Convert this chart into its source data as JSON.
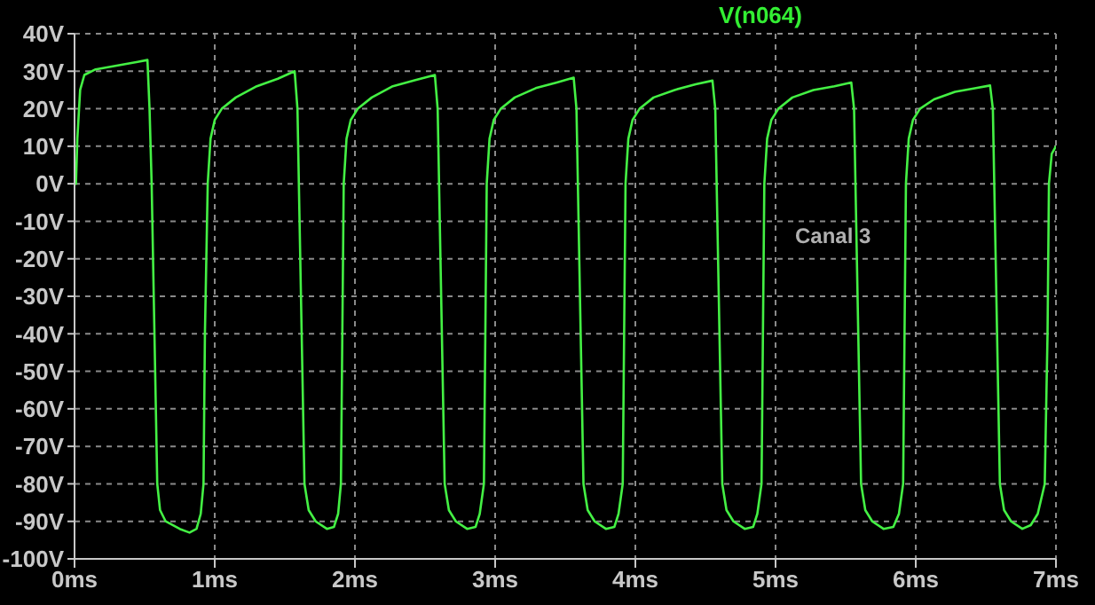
{
  "chart_data": {
    "type": "line",
    "title": "V(n064)",
    "annotations": [
      "Canal 3"
    ],
    "x": [
      0,
      0.01,
      0.02,
      0.04,
      0.07,
      0.15,
      0.3,
      0.45,
      0.52,
      0.535,
      0.55,
      0.57,
      0.59,
      0.61,
      0.65,
      0.75,
      0.82,
      0.87,
      0.9,
      0.92,
      0.93,
      0.95,
      0.97,
      1.0,
      1.05,
      1.15,
      1.3,
      1.45,
      1.57,
      1.59,
      1.6,
      1.62,
      1.64,
      1.67,
      1.72,
      1.8,
      1.85,
      1.88,
      1.9,
      1.91,
      1.92,
      1.94,
      1.97,
      2.02,
      2.12,
      2.27,
      2.42,
      2.57,
      2.59,
      2.6,
      2.62,
      2.64,
      2.67,
      2.72,
      2.8,
      2.86,
      2.89,
      2.92,
      2.93,
      2.94,
      2.96,
      2.99,
      3.04,
      3.14,
      3.29,
      3.44,
      3.56,
      3.58,
      3.59,
      3.61,
      3.63,
      3.66,
      3.71,
      3.79,
      3.85,
      3.88,
      3.91,
      3.92,
      3.93,
      3.95,
      3.98,
      4.03,
      4.13,
      4.28,
      4.43,
      4.55,
      4.57,
      4.58,
      4.6,
      4.62,
      4.65,
      4.7,
      4.78,
      4.84,
      4.87,
      4.9,
      4.91,
      4.92,
      4.94,
      4.97,
      5.02,
      5.12,
      5.27,
      5.42,
      5.54,
      5.56,
      5.57,
      5.59,
      5.61,
      5.64,
      5.69,
      5.77,
      5.84,
      5.88,
      5.91,
      5.92,
      5.93,
      5.95,
      5.98,
      6.03,
      6.13,
      6.28,
      6.43,
      6.53,
      6.55,
      6.56,
      6.58,
      6.6,
      6.63,
      6.68,
      6.76,
      6.82,
      6.87,
      6.92,
      6.94,
      6.95,
      6.97,
      7.0
    ],
    "series": [
      {
        "color": "#44f044",
        "values": [
          0,
          0,
          12,
          25,
          29,
          30.5,
          31.5,
          32.5,
          33,
          20,
          0,
          -40,
          -80,
          -87,
          -90,
          -92,
          -93,
          -92,
          -88,
          -80,
          -40,
          0,
          12,
          17,
          20,
          23,
          26,
          28,
          30,
          20,
          0,
          -40,
          -80,
          -87,
          -90,
          -92,
          -91.5,
          -88,
          -80,
          -40,
          0,
          12,
          17,
          20,
          23,
          26,
          27.5,
          29,
          20,
          0,
          -40,
          -80,
          -87,
          -90,
          -92,
          -91.5,
          -88,
          -80,
          -40,
          0,
          12,
          17,
          20,
          23,
          25.5,
          27,
          28.3,
          20,
          0,
          -40,
          -80,
          -87,
          -90,
          -92,
          -91.5,
          -88,
          -80,
          -40,
          0,
          12,
          17,
          20,
          23,
          25,
          26.5,
          27.5,
          20,
          0,
          -40,
          -80,
          -87,
          -90,
          -92,
          -91.5,
          -88,
          -80,
          -40,
          0,
          12,
          17,
          20,
          23,
          25,
          26,
          27,
          20,
          0,
          -40,
          -80,
          -87,
          -90,
          -92,
          -91.5,
          -88,
          -80,
          -40,
          0,
          12,
          17,
          20,
          22.5,
          24.5,
          25.5,
          26.2,
          20,
          0,
          -40,
          -80,
          -87,
          -90,
          -92,
          -91,
          -88,
          -80,
          -40,
          0,
          8,
          10
        ]
      }
    ],
    "xlim": [
      0,
      7
    ],
    "xticks": [
      {
        "value": 0,
        "label": "0ms"
      },
      {
        "value": 1,
        "label": "1ms"
      },
      {
        "value": 2,
        "label": "2ms"
      },
      {
        "value": 3,
        "label": "3ms"
      },
      {
        "value": 4,
        "label": "4ms"
      },
      {
        "value": 5,
        "label": "5ms"
      },
      {
        "value": 6,
        "label": "6ms"
      },
      {
        "value": 7,
        "label": "7ms"
      }
    ],
    "ylim": [
      -100,
      40
    ],
    "yticks": [
      {
        "value": 40,
        "label": "40V"
      },
      {
        "value": 30,
        "label": "30V"
      },
      {
        "value": 20,
        "label": "20V"
      },
      {
        "value": 10,
        "label": "10V"
      },
      {
        "value": 0,
        "label": "0V"
      },
      {
        "value": -10,
        "label": "-10V"
      },
      {
        "value": -20,
        "label": "-20V"
      },
      {
        "value": -30,
        "label": "-30V"
      },
      {
        "value": -40,
        "label": "-40V"
      },
      {
        "value": -50,
        "label": "-50V"
      },
      {
        "value": -60,
        "label": "-60V"
      },
      {
        "value": -70,
        "label": "-70V"
      },
      {
        "value": -80,
        "label": "-80V"
      },
      {
        "value": -90,
        "label": "-90V"
      },
      {
        "value": -100,
        "label": "-100V"
      }
    ],
    "grid": true,
    "marker": "none",
    "line_style": "solid",
    "legend": false
  }
}
